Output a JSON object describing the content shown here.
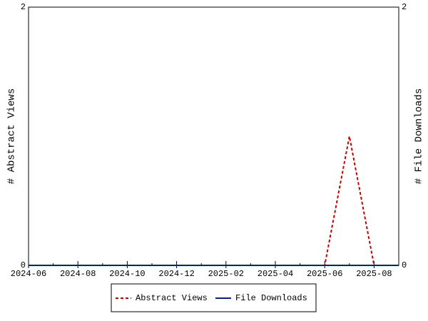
{
  "chart_data": {
    "type": "line",
    "x": [
      "2024-06",
      "2024-07",
      "2024-08",
      "2024-09",
      "2024-10",
      "2024-11",
      "2024-12",
      "2025-01",
      "2025-02",
      "2025-03",
      "2025-04",
      "2025-05",
      "2025-06",
      "2025-07",
      "2025-08",
      "2025-09"
    ],
    "series": [
      {
        "name": "Abstract Views",
        "color": "#cc0000",
        "dash": true,
        "values": [
          0,
          0,
          0,
          0,
          0,
          0,
          0,
          0,
          0,
          0,
          0,
          0,
          0,
          1,
          0,
          null
        ]
      },
      {
        "name": "File Downloads",
        "color": "#002299",
        "dash": false,
        "axis": "y2",
        "values": [
          0,
          0,
          0,
          0,
          0,
          0,
          0,
          0,
          0,
          0,
          0,
          0,
          0,
          0,
          0,
          0
        ]
      }
    ],
    "ylabel": "# Abstract Views",
    "y2label": "# File Downloads",
    "ylim": [
      0,
      2
    ],
    "yticks": [
      0,
      2
    ],
    "y2lim": [
      0,
      2
    ],
    "y2ticks": [
      0,
      2
    ]
  }
}
